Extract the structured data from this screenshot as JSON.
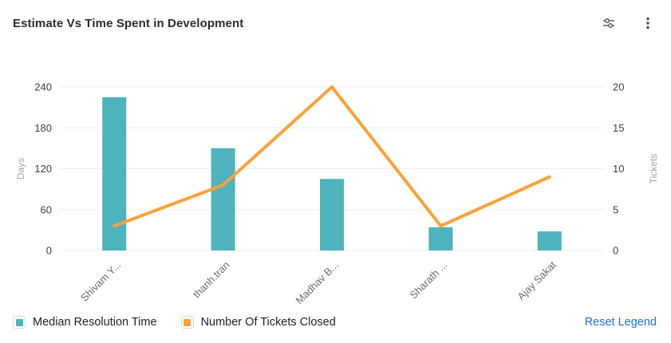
{
  "header": {
    "title": "Estimate Vs Time Spent in Development",
    "icons": [
      "filter-sliders-icon",
      "kebab-menu-icon"
    ]
  },
  "chart_data": {
    "type": "combo-bar-line",
    "categories": [
      "Shivam Y...",
      "thanh.tran",
      "Madhav B...",
      "Sharath ...",
      "Ajay Sakat"
    ],
    "series": [
      {
        "name": "Median Resolution Time",
        "type": "bar",
        "axis": "left",
        "color": "#4db3be",
        "values": [
          225,
          150,
          105,
          34,
          28
        ]
      },
      {
        "name": "Number Of Tickets Closed",
        "type": "line",
        "axis": "right",
        "color": "#f9a23c",
        "values": [
          3,
          8,
          20,
          3,
          9
        ]
      }
    ],
    "left_axis": {
      "label": "Days",
      "min": 0,
      "max": 240,
      "ticks": [
        0,
        60,
        120,
        180,
        240
      ]
    },
    "right_axis": {
      "label": "Tickets",
      "min": 0,
      "max": 20,
      "ticks": [
        0,
        5,
        10,
        15,
        20
      ]
    },
    "grid": true,
    "gridline_color": "#ededed",
    "legend_position": "bottom"
  },
  "legend": {
    "items": [
      {
        "label": "Median Resolution Time",
        "color": "#4db3be"
      },
      {
        "label": "Number Of Tickets Closed",
        "color": "#f9a23c"
      }
    ],
    "reset_label": "Reset Legend",
    "reset_color": "#1e6fd9"
  }
}
